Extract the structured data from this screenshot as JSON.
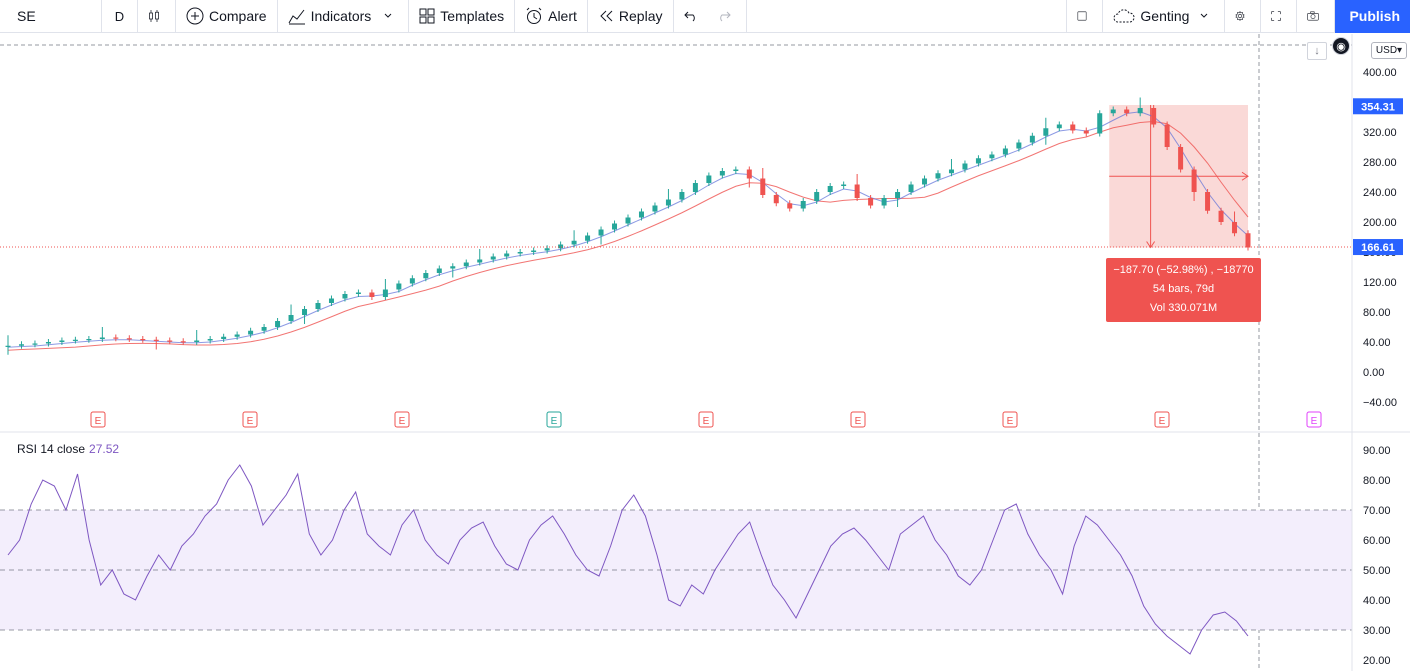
{
  "toolbar": {
    "symbol": "SE",
    "interval": "D",
    "compare": "Compare",
    "indicators": "Indicators",
    "templates": "Templates",
    "alert": "Alert",
    "replay": "Replay",
    "layout_name": "Genting",
    "publish": "Publish"
  },
  "price_panel": {
    "currency": "USD",
    "last_price_label": "354.31",
    "cursor_price_label": "166.61",
    "earnings_marker": "E"
  },
  "measure": {
    "line1": "−187.70 (−52.98%) , −18770",
    "line2": "54 bars, 79d",
    "line3": "Vol 330.071M"
  },
  "rsi": {
    "title": "RSI 14 close",
    "value": "27.52"
  },
  "colors": {
    "up": "#26a69a",
    "down": "#ef5350",
    "rsi_line": "#7e57c2",
    "band_fill": "#f3eefc",
    "accent": "#2962ff",
    "ma_fast": "#5b6fd8",
    "ma_slow": "#ef5350"
  },
  "chart_data": [
    {
      "type": "candlestick",
      "title": "SE",
      "y_ticks": [
        "400.00",
        "360.00",
        "320.00",
        "280.00",
        "240.00",
        "200.00",
        "160.00",
        "120.00",
        "80.00",
        "40.00",
        "0.00",
        "−40.00"
      ],
      "ylim": [
        -60,
        430
      ],
      "series": [
        {
          "name": "close_approx",
          "values": [
            35,
            37,
            38,
            40,
            42,
            43,
            44,
            46,
            45,
            44,
            43,
            42,
            41,
            40,
            42,
            44,
            47,
            50,
            55,
            60,
            68,
            76,
            84,
            92,
            98,
            104,
            106,
            100,
            110,
            118,
            125,
            132,
            138,
            141,
            146,
            150,
            154,
            158,
            160,
            162,
            165,
            170,
            175,
            182,
            190,
            198,
            206,
            214,
            222,
            230,
            240,
            252,
            262,
            268,
            270,
            258,
            236,
            225,
            218,
            228,
            240,
            248,
            250,
            232,
            222,
            232,
            240,
            250,
            258,
            265,
            270,
            278,
            285,
            290,
            298,
            306,
            315,
            325,
            330,
            322,
            318,
            345,
            350,
            345,
            352,
            330,
            300,
            270,
            240,
            215,
            200,
            185,
            166
          ]
        }
      ],
      "earnings_markers": 9
    },
    {
      "type": "line",
      "title": "RSI 14 close",
      "y_ticks": [
        "90.00",
        "80.00",
        "70.00",
        "60.00",
        "50.00",
        "40.00",
        "30.00",
        "20.00"
      ],
      "ylim": [
        16,
        92
      ],
      "bands": {
        "upper": 70,
        "middle": 50,
        "lower": 30
      },
      "series": [
        {
          "name": "RSI",
          "values": [
            55,
            60,
            72,
            80,
            78,
            70,
            82,
            60,
            45,
            50,
            42,
            40,
            48,
            55,
            50,
            58,
            62,
            68,
            72,
            80,
            85,
            78,
            65,
            70,
            75,
            82,
            62,
            55,
            60,
            70,
            76,
            62,
            58,
            55,
            65,
            70,
            60,
            55,
            52,
            60,
            64,
            66,
            58,
            52,
            50,
            60,
            65,
            68,
            62,
            55,
            50,
            48,
            58,
            70,
            75,
            68,
            55,
            40,
            38,
            45,
            42,
            50,
            56,
            62,
            66,
            55,
            45,
            40,
            34,
            42,
            50,
            58,
            62,
            64,
            60,
            55,
            50,
            62,
            65,
            68,
            60,
            55,
            48,
            45,
            50,
            60,
            70,
            72,
            62,
            55,
            50,
            42,
            58,
            68,
            65,
            60,
            55,
            48,
            38,
            32,
            28,
            25,
            22,
            30,
            35,
            36,
            33,
            28
          ]
        }
      ]
    }
  ]
}
